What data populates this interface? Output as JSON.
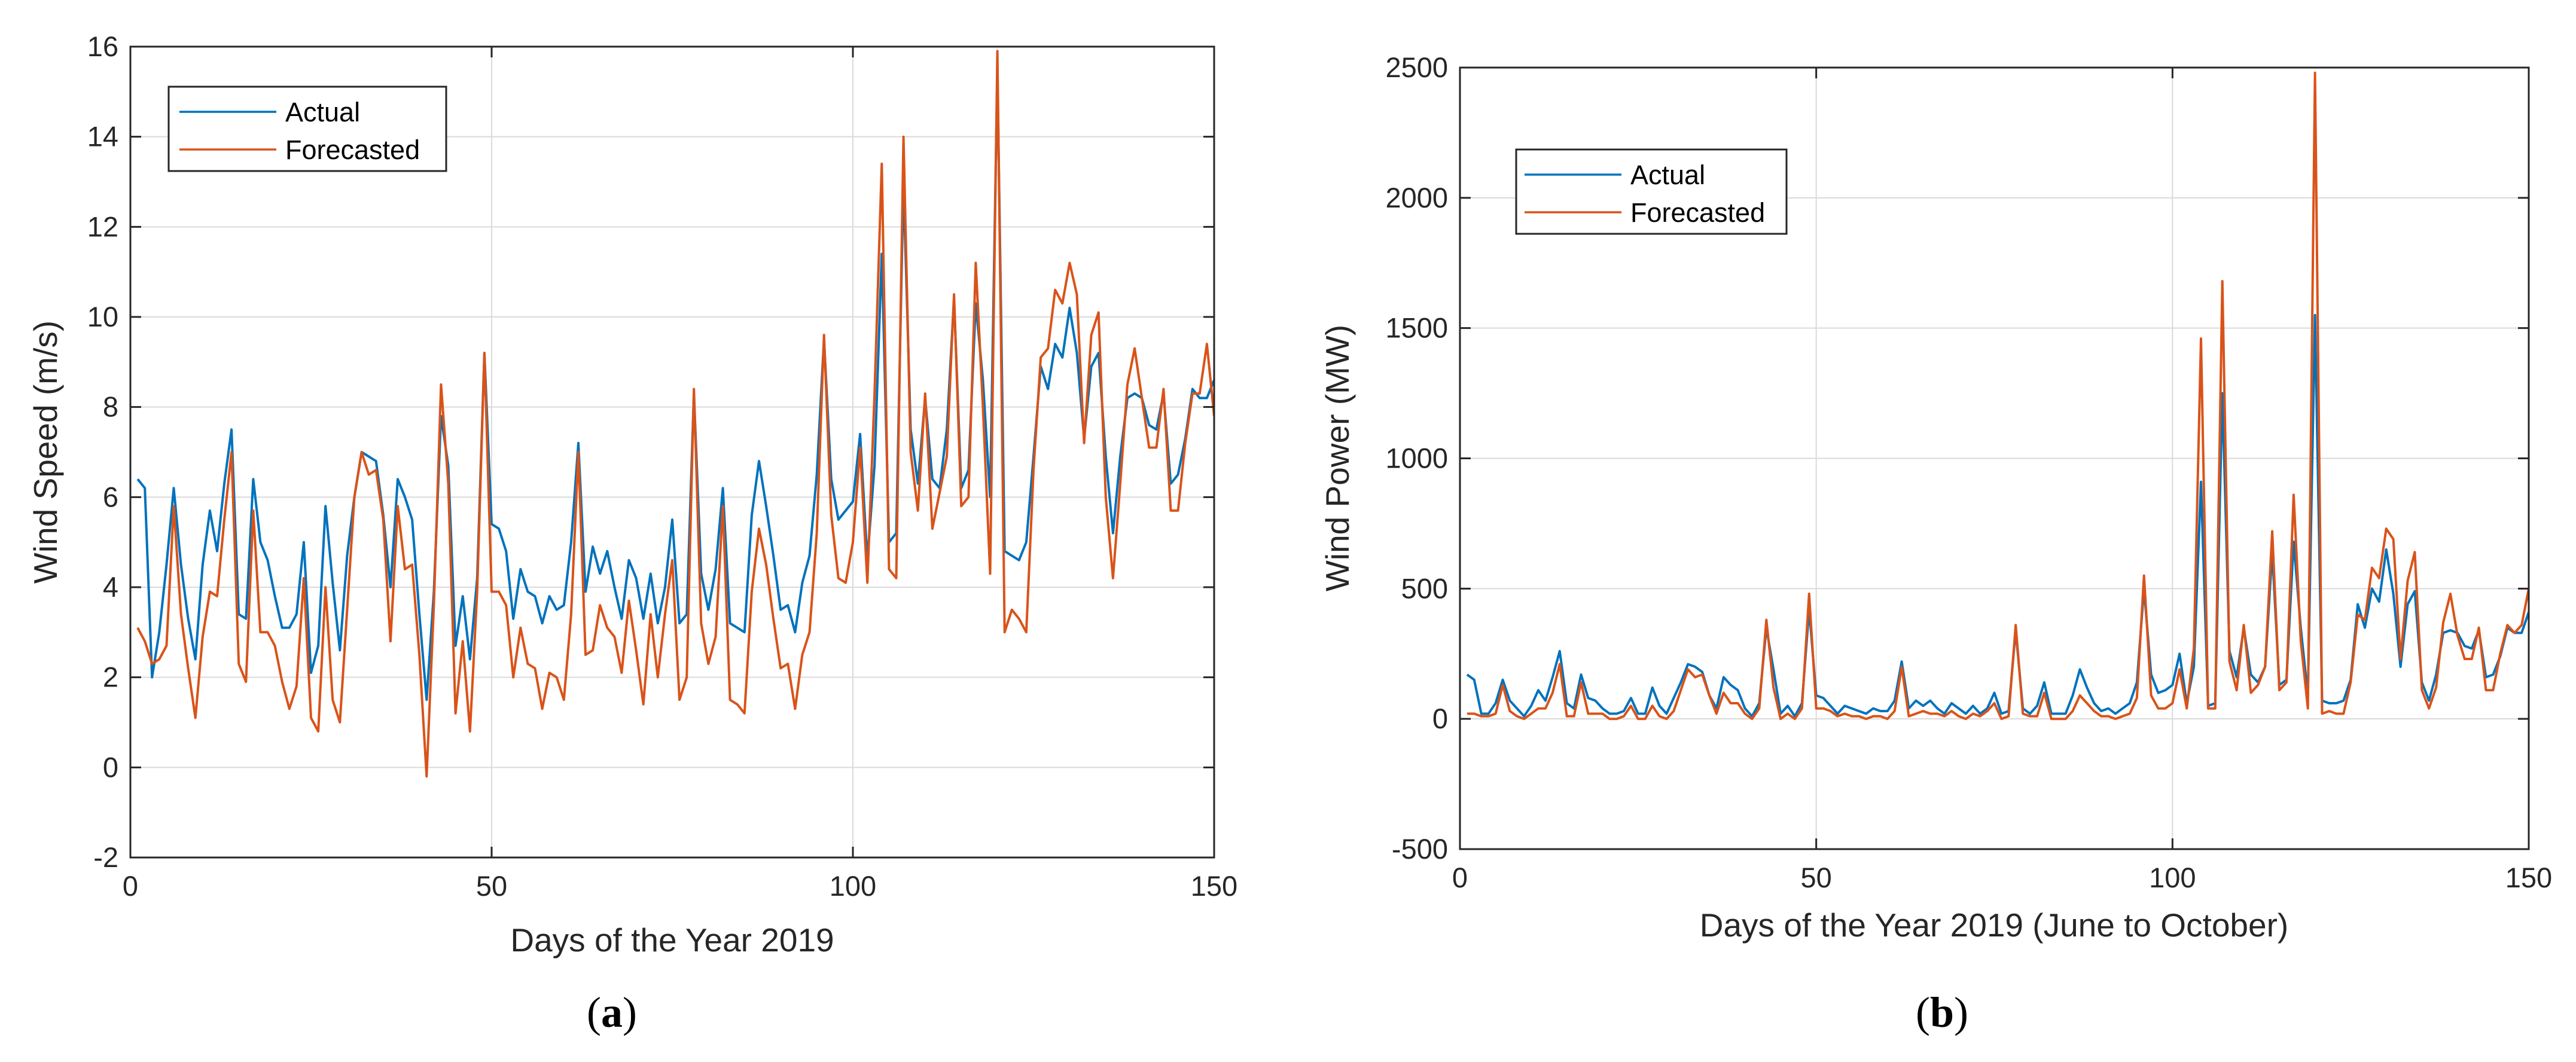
{
  "colors": {
    "actual": "#0072BD",
    "forecasted": "#D95319",
    "grid": "#dadada",
    "axis": "#262626",
    "background": "#ffffff"
  },
  "chart_data": [
    {
      "type": "line",
      "id": "a",
      "caption": {
        "open": "(",
        "letter": "a",
        "close": ")"
      },
      "title": "",
      "xlabel": "Days of the Year 2019",
      "ylabel": "Wind Speed (m/s)",
      "xlim": [
        0,
        150
      ],
      "ylim": [
        -2,
        16
      ],
      "xticks": [
        0,
        50,
        100,
        150
      ],
      "yticks": [
        -2,
        0,
        2,
        4,
        6,
        8,
        10,
        12,
        14,
        16
      ],
      "grid": true,
      "legend": {
        "placement": "top-left",
        "entries": [
          "Actual",
          "Forecasted"
        ]
      },
      "x_start": 1,
      "x_step": 1,
      "series": [
        {
          "name": "Actual",
          "values": [
            6.4,
            6.2,
            2.0,
            3.0,
            4.5,
            6.2,
            4.5,
            3.3,
            2.4,
            4.5,
            5.7,
            4.8,
            6.3,
            7.5,
            3.4,
            3.3,
            6.4,
            5.0,
            4.6,
            3.8,
            3.1,
            3.1,
            3.4,
            5.0,
            2.1,
            2.7,
            5.8,
            4.1,
            2.6,
            4.7,
            6.0,
            7.0,
            6.9,
            6.8,
            5.6,
            4.0,
            6.4,
            6.0,
            5.5,
            3.4,
            1.5,
            3.9,
            7.8,
            6.7,
            2.7,
            3.8,
            2.4,
            4.2,
            9.2,
            5.4,
            5.3,
            4.8,
            3.3,
            4.4,
            3.9,
            3.8,
            3.2,
            3.8,
            3.5,
            3.6,
            5.0,
            7.2,
            3.9,
            4.9,
            4.3,
            4.8,
            4.0,
            3.3,
            4.6,
            4.2,
            3.3,
            4.3,
            3.2,
            4.0,
            5.5,
            3.2,
            3.4,
            8.3,
            4.3,
            3.5,
            4.4,
            6.2,
            3.2,
            3.1,
            3.0,
            5.6,
            6.8,
            5.8,
            4.7,
            3.5,
            3.6,
            3.0,
            4.1,
            4.7,
            6.5,
            9.5,
            6.4,
            5.5,
            5.7,
            5.9,
            7.4,
            4.6,
            6.7,
            11.4,
            5.0,
            5.2,
            13.0,
            7.5,
            6.3,
            8.2,
            6.4,
            6.2,
            7.5,
            10.4,
            6.2,
            6.6,
            10.3,
            8.6,
            6.0,
            15.5,
            4.8,
            4.7,
            4.6,
            5.0,
            6.9,
            8.9,
            8.4,
            9.4,
            9.1,
            10.2,
            9.2,
            7.3,
            8.9,
            9.2,
            6.9,
            5.2,
            6.9,
            8.2,
            8.3,
            8.2,
            7.6,
            7.5,
            8.3,
            6.3,
            6.5,
            7.3,
            8.4,
            8.2,
            8.2,
            8.6
          ]
        },
        {
          "name": "Forecasted",
          "values": [
            3.1,
            2.8,
            2.3,
            2.4,
            2.7,
            5.8,
            3.4,
            2.2,
            1.1,
            2.9,
            3.9,
            3.8,
            5.5,
            7.0,
            2.3,
            1.9,
            5.7,
            3.0,
            3.0,
            2.7,
            1.9,
            1.3,
            1.8,
            4.2,
            1.1,
            0.8,
            4.0,
            1.5,
            1.0,
            3.5,
            6.0,
            7.0,
            6.5,
            6.6,
            5.5,
            2.8,
            5.8,
            4.4,
            4.5,
            2.5,
            -0.2,
            3.6,
            8.5,
            6.3,
            1.2,
            2.8,
            0.8,
            3.9,
            9.2,
            3.9,
            3.9,
            3.6,
            2.0,
            3.1,
            2.3,
            2.2,
            1.3,
            2.1,
            2.0,
            1.5,
            3.4,
            7.0,
            2.5,
            2.6,
            3.6,
            3.1,
            2.9,
            2.1,
            3.7,
            2.6,
            1.4,
            3.4,
            2.0,
            3.4,
            4.6,
            1.5,
            2.0,
            8.4,
            3.2,
            2.3,
            2.9,
            5.8,
            1.5,
            1.4,
            1.2,
            3.9,
            5.3,
            4.5,
            3.3,
            2.2,
            2.3,
            1.3,
            2.5,
            3.0,
            5.2,
            9.6,
            5.6,
            4.2,
            4.1,
            5.0,
            7.1,
            4.1,
            8.3,
            13.4,
            4.4,
            4.2,
            14.0,
            7.0,
            5.7,
            8.3,
            5.3,
            6.1,
            6.9,
            10.5,
            5.8,
            6.0,
            11.2,
            8.0,
            4.3,
            15.9,
            3.0,
            3.5,
            3.3,
            3.0,
            6.6,
            9.1,
            9.3,
            10.6,
            10.3,
            11.2,
            10.5,
            7.2,
            9.6,
            10.1,
            6.0,
            4.2,
            6.3,
            8.5,
            9.3,
            8.2,
            7.1,
            7.1,
            8.4,
            5.7,
            5.7,
            7.2,
            8.3,
            8.3,
            9.4,
            7.8
          ]
        }
      ]
    },
    {
      "type": "line",
      "id": "b",
      "caption": {
        "open": "(",
        "letter": "b",
        "close": ")"
      },
      "title": "",
      "xlabel": "Days of the Year 2019 (June to October)",
      "ylabel": "Wind Power (MW)",
      "xlim": [
        0,
        150
      ],
      "ylim": [
        -500,
        2500
      ],
      "xticks": [
        0,
        50,
        100,
        150
      ],
      "yticks": [
        -500,
        0,
        500,
        1000,
        1500,
        2000,
        2500
      ],
      "grid": true,
      "legend": {
        "placement": "top-left",
        "entries": [
          "Actual",
          "Forecasted"
        ]
      },
      "x_start": 1,
      "x_step": 1,
      "series": [
        {
          "name": "Actual",
          "values": [
            170,
            150,
            20,
            20,
            60,
            150,
            70,
            40,
            10,
            50,
            110,
            70,
            160,
            260,
            60,
            40,
            170,
            80,
            70,
            40,
            20,
            20,
            30,
            80,
            20,
            20,
            120,
            50,
            20,
            80,
            140,
            210,
            200,
            180,
            90,
            40,
            160,
            130,
            110,
            40,
            10,
            60,
            350,
            190,
            20,
            50,
            10,
            60,
            420,
            90,
            80,
            50,
            20,
            50,
            40,
            30,
            20,
            40,
            30,
            30,
            70,
            220,
            40,
            70,
            50,
            70,
            40,
            20,
            60,
            40,
            20,
            50,
            20,
            40,
            100,
            20,
            30,
            340,
            40,
            20,
            50,
            140,
            20,
            20,
            20,
            90,
            190,
            120,
            60,
            30,
            40,
            20,
            40,
            60,
            140,
            500,
            170,
            100,
            110,
            130,
            250,
            60,
            200,
            910,
            50,
            60,
            1250,
            260,
            160,
            350,
            170,
            140,
            200,
            640,
            130,
            150,
            680,
            350,
            90,
            1550,
            70,
            60,
            60,
            70,
            150,
            440,
            350,
            500,
            450,
            650,
            480,
            200,
            440,
            490,
            140,
            70,
            170,
            330,
            340,
            330,
            280,
            270,
            340,
            160,
            170,
            240,
            350,
            330,
            330,
            410
          ]
        },
        {
          "name": "Forecasted",
          "values": [
            20,
            20,
            10,
            10,
            20,
            130,
            30,
            10,
            0,
            20,
            40,
            40,
            100,
            210,
            10,
            10,
            140,
            20,
            20,
            20,
            0,
            0,
            10,
            50,
            0,
            0,
            50,
            10,
            0,
            30,
            110,
            190,
            160,
            170,
            90,
            20,
            100,
            60,
            60,
            20,
            0,
            40,
            380,
            120,
            0,
            20,
            0,
            40,
            480,
            40,
            40,
            30,
            10,
            20,
            10,
            10,
            0,
            10,
            10,
            0,
            30,
            200,
            10,
            20,
            30,
            20,
            20,
            10,
            30,
            10,
            0,
            20,
            10,
            30,
            60,
            0,
            10,
            360,
            20,
            10,
            10,
            100,
            0,
            0,
            0,
            30,
            90,
            60,
            30,
            10,
            10,
            0,
            10,
            20,
            80,
            550,
            90,
            40,
            40,
            60,
            190,
            40,
            270,
            1460,
            40,
            40,
            1680,
            220,
            110,
            360,
            100,
            130,
            200,
            720,
            110,
            140,
            860,
            300,
            40,
            2480,
            20,
            30,
            20,
            20,
            140,
            400,
            380,
            580,
            540,
            730,
            690,
            230,
            530,
            640,
            110,
            40,
            120,
            370,
            480,
            320,
            230,
            230,
            350,
            110,
            110,
            250,
            360,
            330,
            360,
            500
          ]
        }
      ]
    }
  ]
}
